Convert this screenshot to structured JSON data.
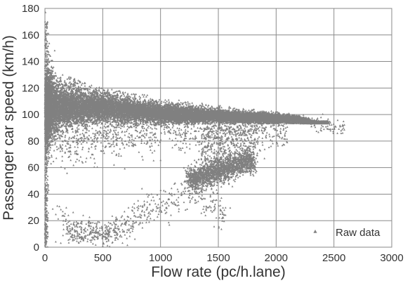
{
  "chart_data": {
    "type": "scatter",
    "xlabel": "Flow rate (pc/h.lane)",
    "ylabel": "Passenger car speed (km/h)",
    "xlim": [
      0,
      3000
    ],
    "ylim": [
      0,
      180
    ],
    "xticks": [
      0,
      500,
      1000,
      1500,
      2000,
      2500,
      3000
    ],
    "yticks": [
      0,
      20,
      40,
      60,
      80,
      100,
      120,
      140,
      160,
      180
    ],
    "grid": true,
    "legend": {
      "placement": "bottom-right",
      "entries": [
        "Raw data"
      ]
    },
    "series": [
      {
        "name": "Raw data",
        "color": "#808080",
        "free_flow_branch": [
          [
            0,
            105
          ],
          [
            250,
            106
          ],
          [
            500,
            105
          ],
          [
            750,
            103
          ],
          [
            1000,
            101
          ],
          [
            1250,
            100
          ],
          [
            1500,
            99
          ],
          [
            1750,
            98
          ],
          [
            2000,
            97
          ],
          [
            2200,
            96
          ],
          [
            2400,
            92
          ],
          [
            2600,
            90
          ]
        ],
        "congested_cluster": [
          [
            1300,
            52
          ],
          [
            1400,
            55
          ],
          [
            1500,
            57
          ],
          [
            1600,
            60
          ],
          [
            1700,
            64
          ]
        ],
        "free_flow_upper_envelope": [
          [
            0,
            135
          ],
          [
            500,
            120
          ],
          [
            1000,
            113
          ],
          [
            1500,
            107
          ],
          [
            2000,
            103
          ],
          [
            2400,
            98
          ]
        ],
        "free_flow_lower_envelope": [
          [
            0,
            78
          ],
          [
            500,
            88
          ],
          [
            1000,
            92
          ],
          [
            1500,
            93
          ],
          [
            2000,
            93
          ]
        ],
        "outliers_low_speed": [
          [
            50,
            40
          ],
          [
            100,
            45
          ],
          [
            200,
            12
          ],
          [
            300,
            10
          ],
          [
            400,
            8
          ],
          [
            500,
            8
          ],
          [
            700,
            15
          ],
          [
            900,
            28
          ],
          [
            1100,
            35
          ],
          [
            1300,
            45
          ],
          [
            1500,
            25
          ]
        ],
        "outliers_high_speed": [
          [
            5,
            177
          ],
          [
            10,
            168
          ],
          [
            15,
            160
          ],
          [
            20,
            150
          ],
          [
            30,
            142
          ]
        ]
      }
    ]
  }
}
